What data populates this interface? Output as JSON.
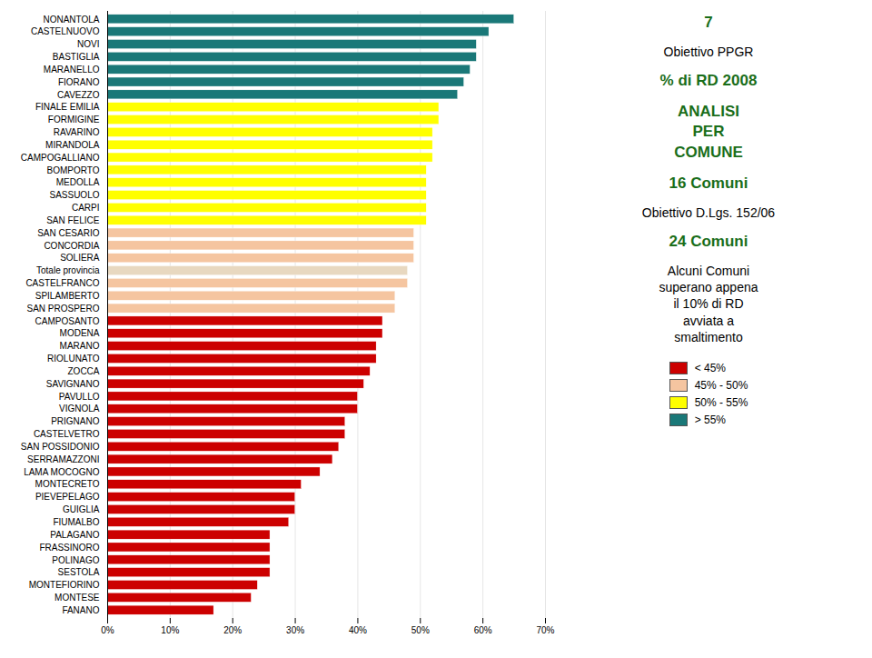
{
  "chart_data": {
    "type": "bar",
    "orientation": "horizontal",
    "categories": [
      "NONANTOLA",
      "CASTELNUOVO",
      "NOVI",
      "BASTIGLIA",
      "MARANELLO",
      "FIORANO",
      "CAVEZZO",
      "FINALE EMILIA",
      "FORMIGINE",
      "RAVARINO",
      "MIRANDOLA",
      "CAMPOGALLIANO",
      "BOMPORTO",
      "MEDOLLA",
      "SASSUOLO",
      "CARPI",
      "SAN FELICE",
      "SAN CESARIO",
      "CONCORDIA",
      "SOLIERA",
      "Totale provincia",
      "CASTELFRANCO",
      "SPILAMBERTO",
      "SAN PROSPERO",
      "CAMPOSANTO",
      "MODENA",
      "MARANO",
      "RIOLUNATO",
      "ZOCCA",
      "SAVIGNANO",
      "PAVULLO",
      "VIGNOLA",
      "PRIGNANO",
      "CASTELVETRO",
      "SAN POSSIDONIO",
      "SERRAMAZZONI",
      "LAMA MOCOGNO",
      "MONTECRETO",
      "PIEVEPELAGO",
      "GUIGLIA",
      "FIUMALBO",
      "PALAGANO",
      "FRASSINORO",
      "POLINAGO",
      "SESTOLA",
      "MONTEFIORINO",
      "MONTESE",
      "FANANO"
    ],
    "values": [
      65,
      61,
      59,
      59,
      58,
      57,
      56,
      53,
      53,
      52,
      52,
      52,
      51,
      51,
      51,
      51,
      51,
      49,
      49,
      49,
      48,
      48,
      46,
      46,
      44,
      44,
      43,
      43,
      42,
      41,
      40,
      40,
      38,
      38,
      37,
      36,
      34,
      31,
      30,
      30,
      29,
      26,
      26,
      26,
      26,
      24,
      23,
      17
    ],
    "colors": [
      "#1a7878",
      "#1a7878",
      "#1a7878",
      "#1a7878",
      "#1a7878",
      "#1a7878",
      "#1a7878",
      "#FFFF00",
      "#FFFF00",
      "#FFFF00",
      "#FFFF00",
      "#FFFF00",
      "#FFFF00",
      "#FFFF00",
      "#FFFF00",
      "#FFFF00",
      "#FFFF00",
      "#F5C5A0",
      "#F5C5A0",
      "#F5C5A0",
      "#E8D8C0",
      "#F5C5A0",
      "#F5C5A0",
      "#F5C5A0",
      "#CC0000",
      "#CC0000",
      "#CC0000",
      "#CC0000",
      "#CC0000",
      "#CC0000",
      "#CC0000",
      "#CC0000",
      "#CC0000",
      "#CC0000",
      "#CC0000",
      "#CC0000",
      "#CC0000",
      "#CC0000",
      "#CC0000",
      "#CC0000",
      "#CC0000",
      "#CC0000",
      "#CC0000",
      "#CC0000",
      "#CC0000",
      "#CC0000",
      "#CC0000",
      "#CC0000"
    ],
    "xlim": [
      0,
      70
    ],
    "xticks": [
      {
        "value": 0,
        "label": "0%"
      },
      {
        "value": 10,
        "label": "10%"
      },
      {
        "value": 20,
        "label": "20%"
      },
      {
        "value": 30,
        "label": "30%"
      },
      {
        "value": 40,
        "label": "40%"
      },
      {
        "value": 50,
        "label": "50%"
      },
      {
        "value": 60,
        "label": "60%"
      },
      {
        "value": 70,
        "label": "70%"
      }
    ],
    "grid": true,
    "legend": "lower right",
    "legend_entries": [
      {
        "label": "< 45%",
        "color": "#CC0000"
      },
      {
        "label": "45% - 50%",
        "color": "#F5C5A0"
      },
      {
        "label": "50% - 55%",
        "color": "#FFFF00"
      },
      {
        "label": "> 55%",
        "color": "#1a7878"
      }
    ],
    "annotations": [
      {
        "text": "7",
        "color": "#1a6e1a"
      },
      {
        "text": "Obiettivo  PPGR"
      },
      {
        "text": "% di RD 2008",
        "color": "#1a6e1a"
      },
      {
        "text": "ANALISI\nPER\nCOMUNE",
        "color": "#1a6e1a"
      },
      {
        "text": "16 Comuni",
        "color": "#1a6e1a"
      },
      {
        "text": "Obiettivo D.Lgs.  152/06"
      },
      {
        "text": "24 Comuni",
        "color": "#1a6e1a"
      },
      {
        "text": "Alcuni Comuni\nsuperano appena\nil  10% di RD\navviata a\nsmaltimento"
      }
    ]
  }
}
